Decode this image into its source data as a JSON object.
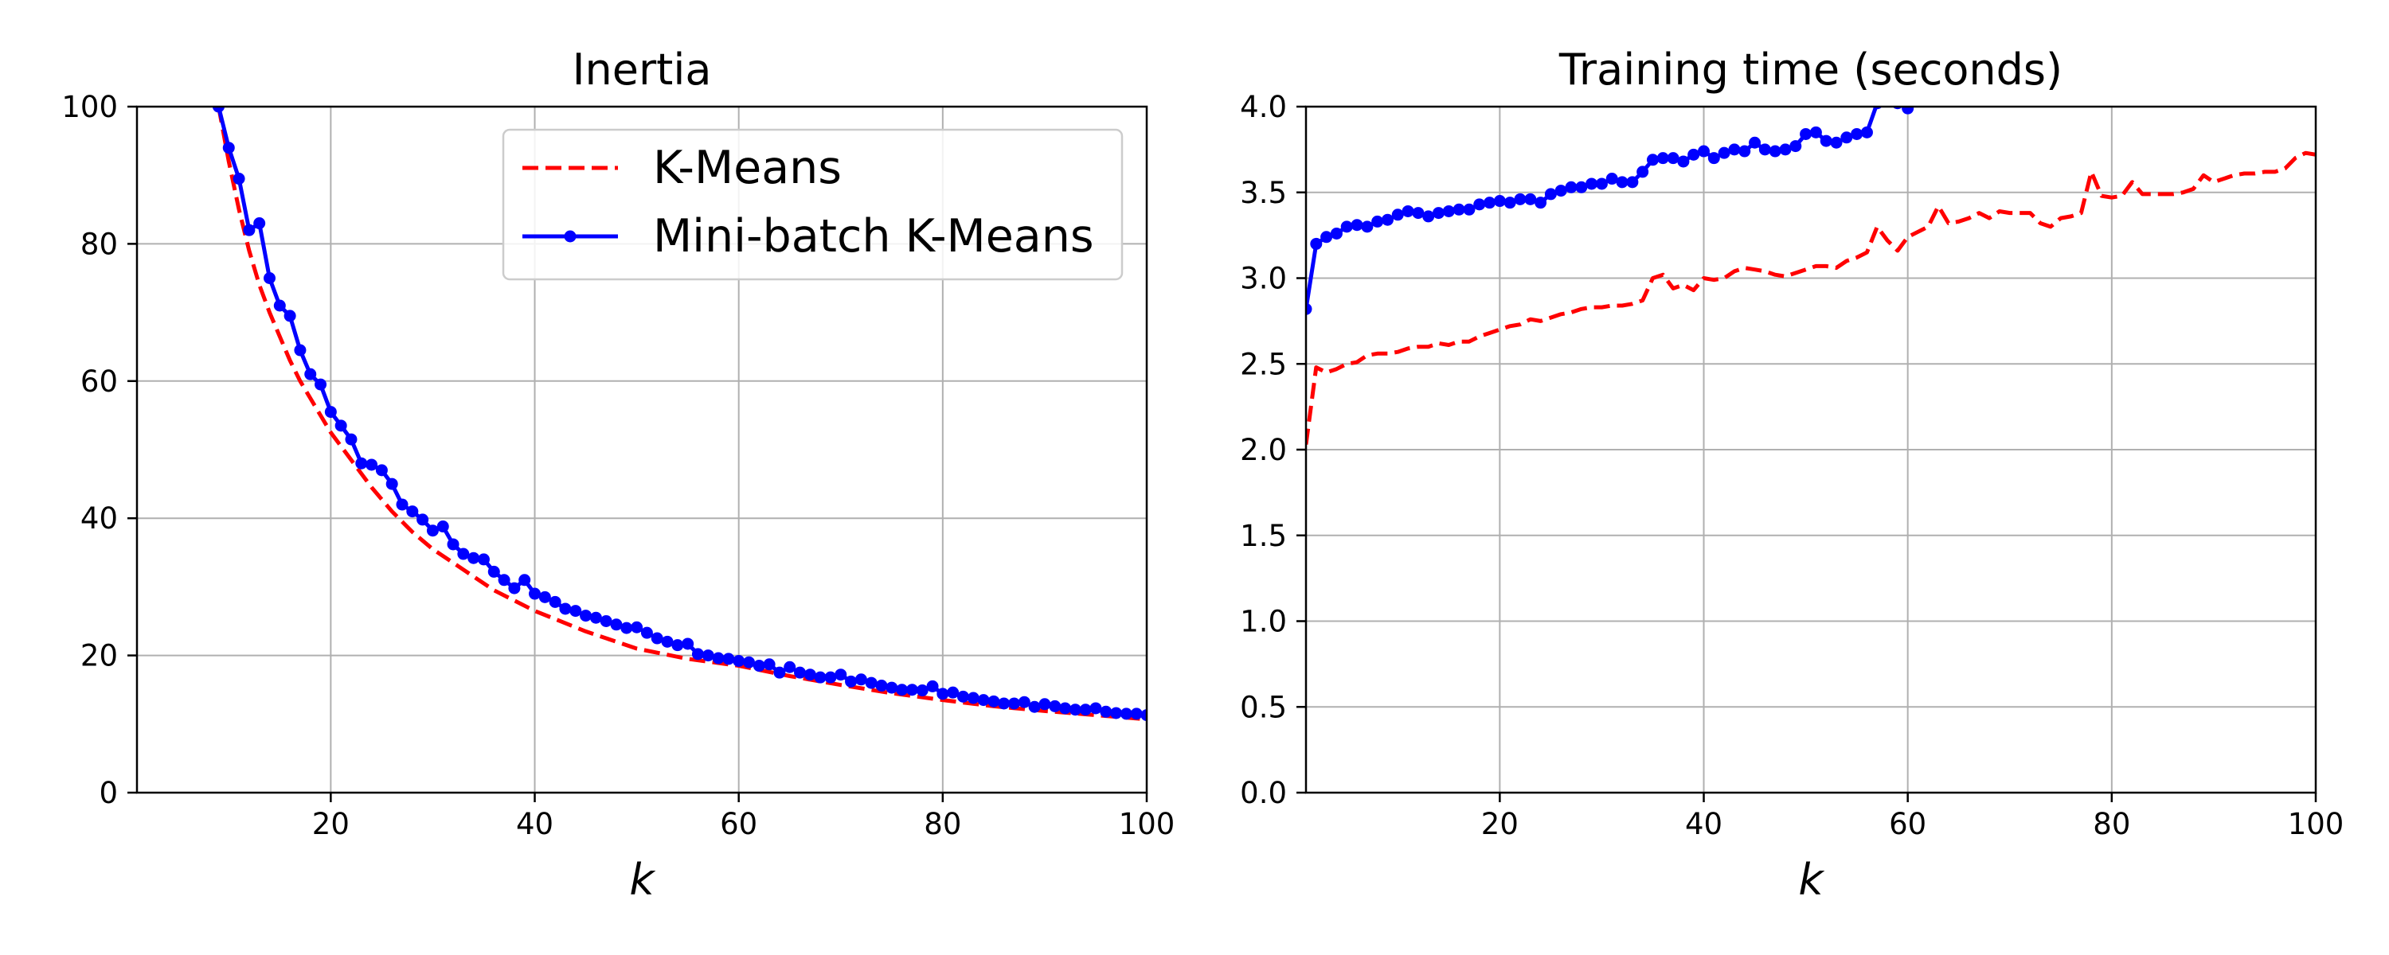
{
  "chart_data": [
    {
      "type": "line",
      "title": "Inertia",
      "xlabel": "k",
      "ylabel": "",
      "xlim": [
        1,
        100
      ],
      "ylim": [
        0,
        100
      ],
      "xticks": [
        20,
        40,
        60,
        80,
        100
      ],
      "yticks": [
        0,
        20,
        40,
        60,
        80,
        100
      ],
      "grid": true,
      "legend": {
        "placement": "top-right"
      },
      "series": [
        {
          "name": "K-Means",
          "color": "#ff0000",
          "style": "dashed",
          "x": [
            9,
            10,
            11,
            12,
            13,
            14,
            15,
            16,
            17,
            18,
            19,
            20,
            22,
            24,
            26,
            28,
            30,
            33,
            36,
            40,
            45,
            50,
            55,
            60,
            65,
            70,
            75,
            80,
            85,
            90,
            95,
            100
          ],
          "y": [
            100,
            92,
            85,
            79,
            74,
            70,
            66.5,
            63,
            60,
            57.5,
            55,
            52.5,
            48.5,
            44.5,
            41,
            38,
            35.5,
            32.5,
            29.5,
            26.5,
            23.5,
            21,
            19.5,
            18.5,
            17,
            15.7,
            14.5,
            13.5,
            12.6,
            11.9,
            11.3,
            10.7
          ]
        },
        {
          "name": "Mini-batch K-Means",
          "color": "#0000ff",
          "style": "solid-marker",
          "x": [
            9,
            10,
            11,
            12,
            13,
            14,
            15,
            16,
            17,
            18,
            19,
            20,
            21,
            22,
            23,
            24,
            25,
            26,
            27,
            28,
            29,
            30,
            31,
            32,
            33,
            34,
            35,
            36,
            37,
            38,
            39,
            40,
            41,
            42,
            43,
            44,
            45,
            46,
            47,
            48,
            49,
            50,
            51,
            52,
            53,
            54,
            55,
            56,
            57,
            58,
            59,
            60,
            61,
            62,
            63,
            64,
            65,
            66,
            67,
            68,
            69,
            70,
            71,
            72,
            73,
            74,
            75,
            76,
            77,
            78,
            79,
            80,
            81,
            82,
            83,
            84,
            85,
            86,
            87,
            88,
            89,
            90,
            91,
            92,
            93,
            94,
            95,
            96,
            97,
            98,
            99,
            100
          ],
          "y": [
            100,
            94,
            89.5,
            82,
            83,
            75,
            71,
            69.5,
            64.5,
            61,
            59.5,
            55.5,
            53.5,
            51.5,
            48,
            47.8,
            47,
            45,
            42,
            41,
            39.8,
            38.2,
            38.8,
            36.2,
            34.8,
            34.2,
            34,
            32.2,
            31,
            29.8,
            31,
            29,
            28.5,
            27.8,
            26.8,
            26.5,
            25.8,
            25.5,
            25,
            24.5,
            24,
            24.1,
            23.3,
            22.5,
            22,
            21.5,
            21.7,
            20.2,
            20,
            19.6,
            19.5,
            19.2,
            19,
            18.5,
            18.7,
            17.5,
            18.3,
            17.5,
            17.2,
            16.8,
            16.8,
            17.2,
            16.2,
            16.5,
            16,
            15.6,
            15.3,
            15,
            15,
            14.9,
            15.5,
            14.4,
            14.6,
            14,
            13.8,
            13.5,
            13.3,
            13,
            13,
            13.2,
            12.5,
            12.9,
            12.6,
            12.3,
            12.1,
            12.1,
            12.3,
            11.8,
            11.6,
            11.5,
            11.5,
            11.3
          ]
        }
      ]
    },
    {
      "type": "line",
      "title": "Training time (seconds)",
      "xlabel": "k",
      "ylabel": "",
      "xlim": [
        1,
        100
      ],
      "ylim": [
        0,
        4
      ],
      "xticks": [
        20,
        40,
        60,
        80,
        100
      ],
      "yticks": [
        0.0,
        0.5,
        1.0,
        1.5,
        2.0,
        2.5,
        3.0,
        3.5,
        4.0
      ],
      "ytick_labels": [
        "0.0",
        "0.5",
        "1.0",
        "1.5",
        "2.0",
        "2.5",
        "3.0",
        "3.5",
        "4.0"
      ],
      "grid": true,
      "series": [
        {
          "name": "K-Means",
          "color": "#ff0000",
          "style": "dashed",
          "x": [
            1,
            2,
            3,
            4,
            5,
            6,
            7,
            8,
            9,
            10,
            11,
            12,
            13,
            14,
            15,
            16,
            17,
            18,
            19,
            20,
            21,
            22,
            23,
            24,
            25,
            26,
            27,
            28,
            29,
            30,
            31,
            32,
            33,
            34,
            35,
            36,
            37,
            38,
            39,
            40,
            41,
            42,
            43,
            44,
            45,
            46,
            47,
            48,
            49,
            50,
            51,
            52,
            53,
            54,
            55,
            56,
            57,
            58,
            59,
            60,
            61,
            62,
            63,
            64,
            65,
            66,
            67,
            68,
            69,
            70,
            71,
            72,
            73,
            74,
            75,
            76,
            77,
            78,
            79,
            80,
            81,
            82,
            83,
            84,
            85,
            86,
            87,
            88,
            89,
            90,
            91,
            92,
            93,
            94,
            95,
            96,
            97,
            98,
            99,
            100
          ],
          "y": [
            2.03,
            2.48,
            2.45,
            2.47,
            2.5,
            2.51,
            2.55,
            2.56,
            2.56,
            2.57,
            2.59,
            2.6,
            2.6,
            2.62,
            2.61,
            2.63,
            2.63,
            2.66,
            2.68,
            2.7,
            2.72,
            2.73,
            2.76,
            2.75,
            2.77,
            2.79,
            2.8,
            2.82,
            2.83,
            2.83,
            2.84,
            2.84,
            2.85,
            2.87,
            3,
            3.02,
            2.94,
            2.96,
            2.93,
            3,
            2.99,
            3,
            3.04,
            3.06,
            3.05,
            3.04,
            3.02,
            3.01,
            3.03,
            3.05,
            3.07,
            3.07,
            3.06,
            3.1,
            3.12,
            3.15,
            3.3,
            3.22,
            3.16,
            3.24,
            3.27,
            3.3,
            3.42,
            3.32,
            3.33,
            3.35,
            3.38,
            3.35,
            3.39,
            3.38,
            3.38,
            3.38,
            3.32,
            3.3,
            3.35,
            3.36,
            3.38,
            3.62,
            3.48,
            3.47,
            3.48,
            3.56,
            3.49,
            3.49,
            3.49,
            3.49,
            3.5,
            3.52,
            3.6,
            3.56,
            3.58,
            3.6,
            3.61,
            3.61,
            3.62,
            3.62,
            3.64,
            3.7,
            3.73,
            3.72
          ]
        },
        {
          "name": "Mini-batch K-Means",
          "color": "#0000ff",
          "style": "solid-marker",
          "x": [
            1,
            2,
            3,
            4,
            5,
            6,
            7,
            8,
            9,
            10,
            11,
            12,
            13,
            14,
            15,
            16,
            17,
            18,
            19,
            20,
            21,
            22,
            23,
            24,
            25,
            26,
            27,
            28,
            29,
            30,
            31,
            32,
            33,
            34,
            35,
            36,
            37,
            38,
            39,
            40,
            41,
            42,
            43,
            44,
            45,
            46,
            47,
            48,
            49,
            50,
            51,
            52,
            53,
            54,
            55,
            56,
            57,
            58,
            59,
            60
          ],
          "y": [
            2.82,
            3.2,
            3.24,
            3.26,
            3.3,
            3.31,
            3.3,
            3.33,
            3.34,
            3.37,
            3.39,
            3.38,
            3.36,
            3.38,
            3.39,
            3.4,
            3.4,
            3.43,
            3.44,
            3.45,
            3.44,
            3.46,
            3.46,
            3.44,
            3.49,
            3.51,
            3.53,
            3.53,
            3.55,
            3.55,
            3.58,
            3.56,
            3.56,
            3.62,
            3.69,
            3.7,
            3.7,
            3.68,
            3.72,
            3.74,
            3.7,
            3.73,
            3.75,
            3.74,
            3.79,
            3.75,
            3.74,
            3.75,
            3.77,
            3.84,
            3.85,
            3.8,
            3.79,
            3.82,
            3.84,
            3.85,
            4.02,
            4.15,
            4.02,
            3.99
          ]
        }
      ]
    }
  ]
}
